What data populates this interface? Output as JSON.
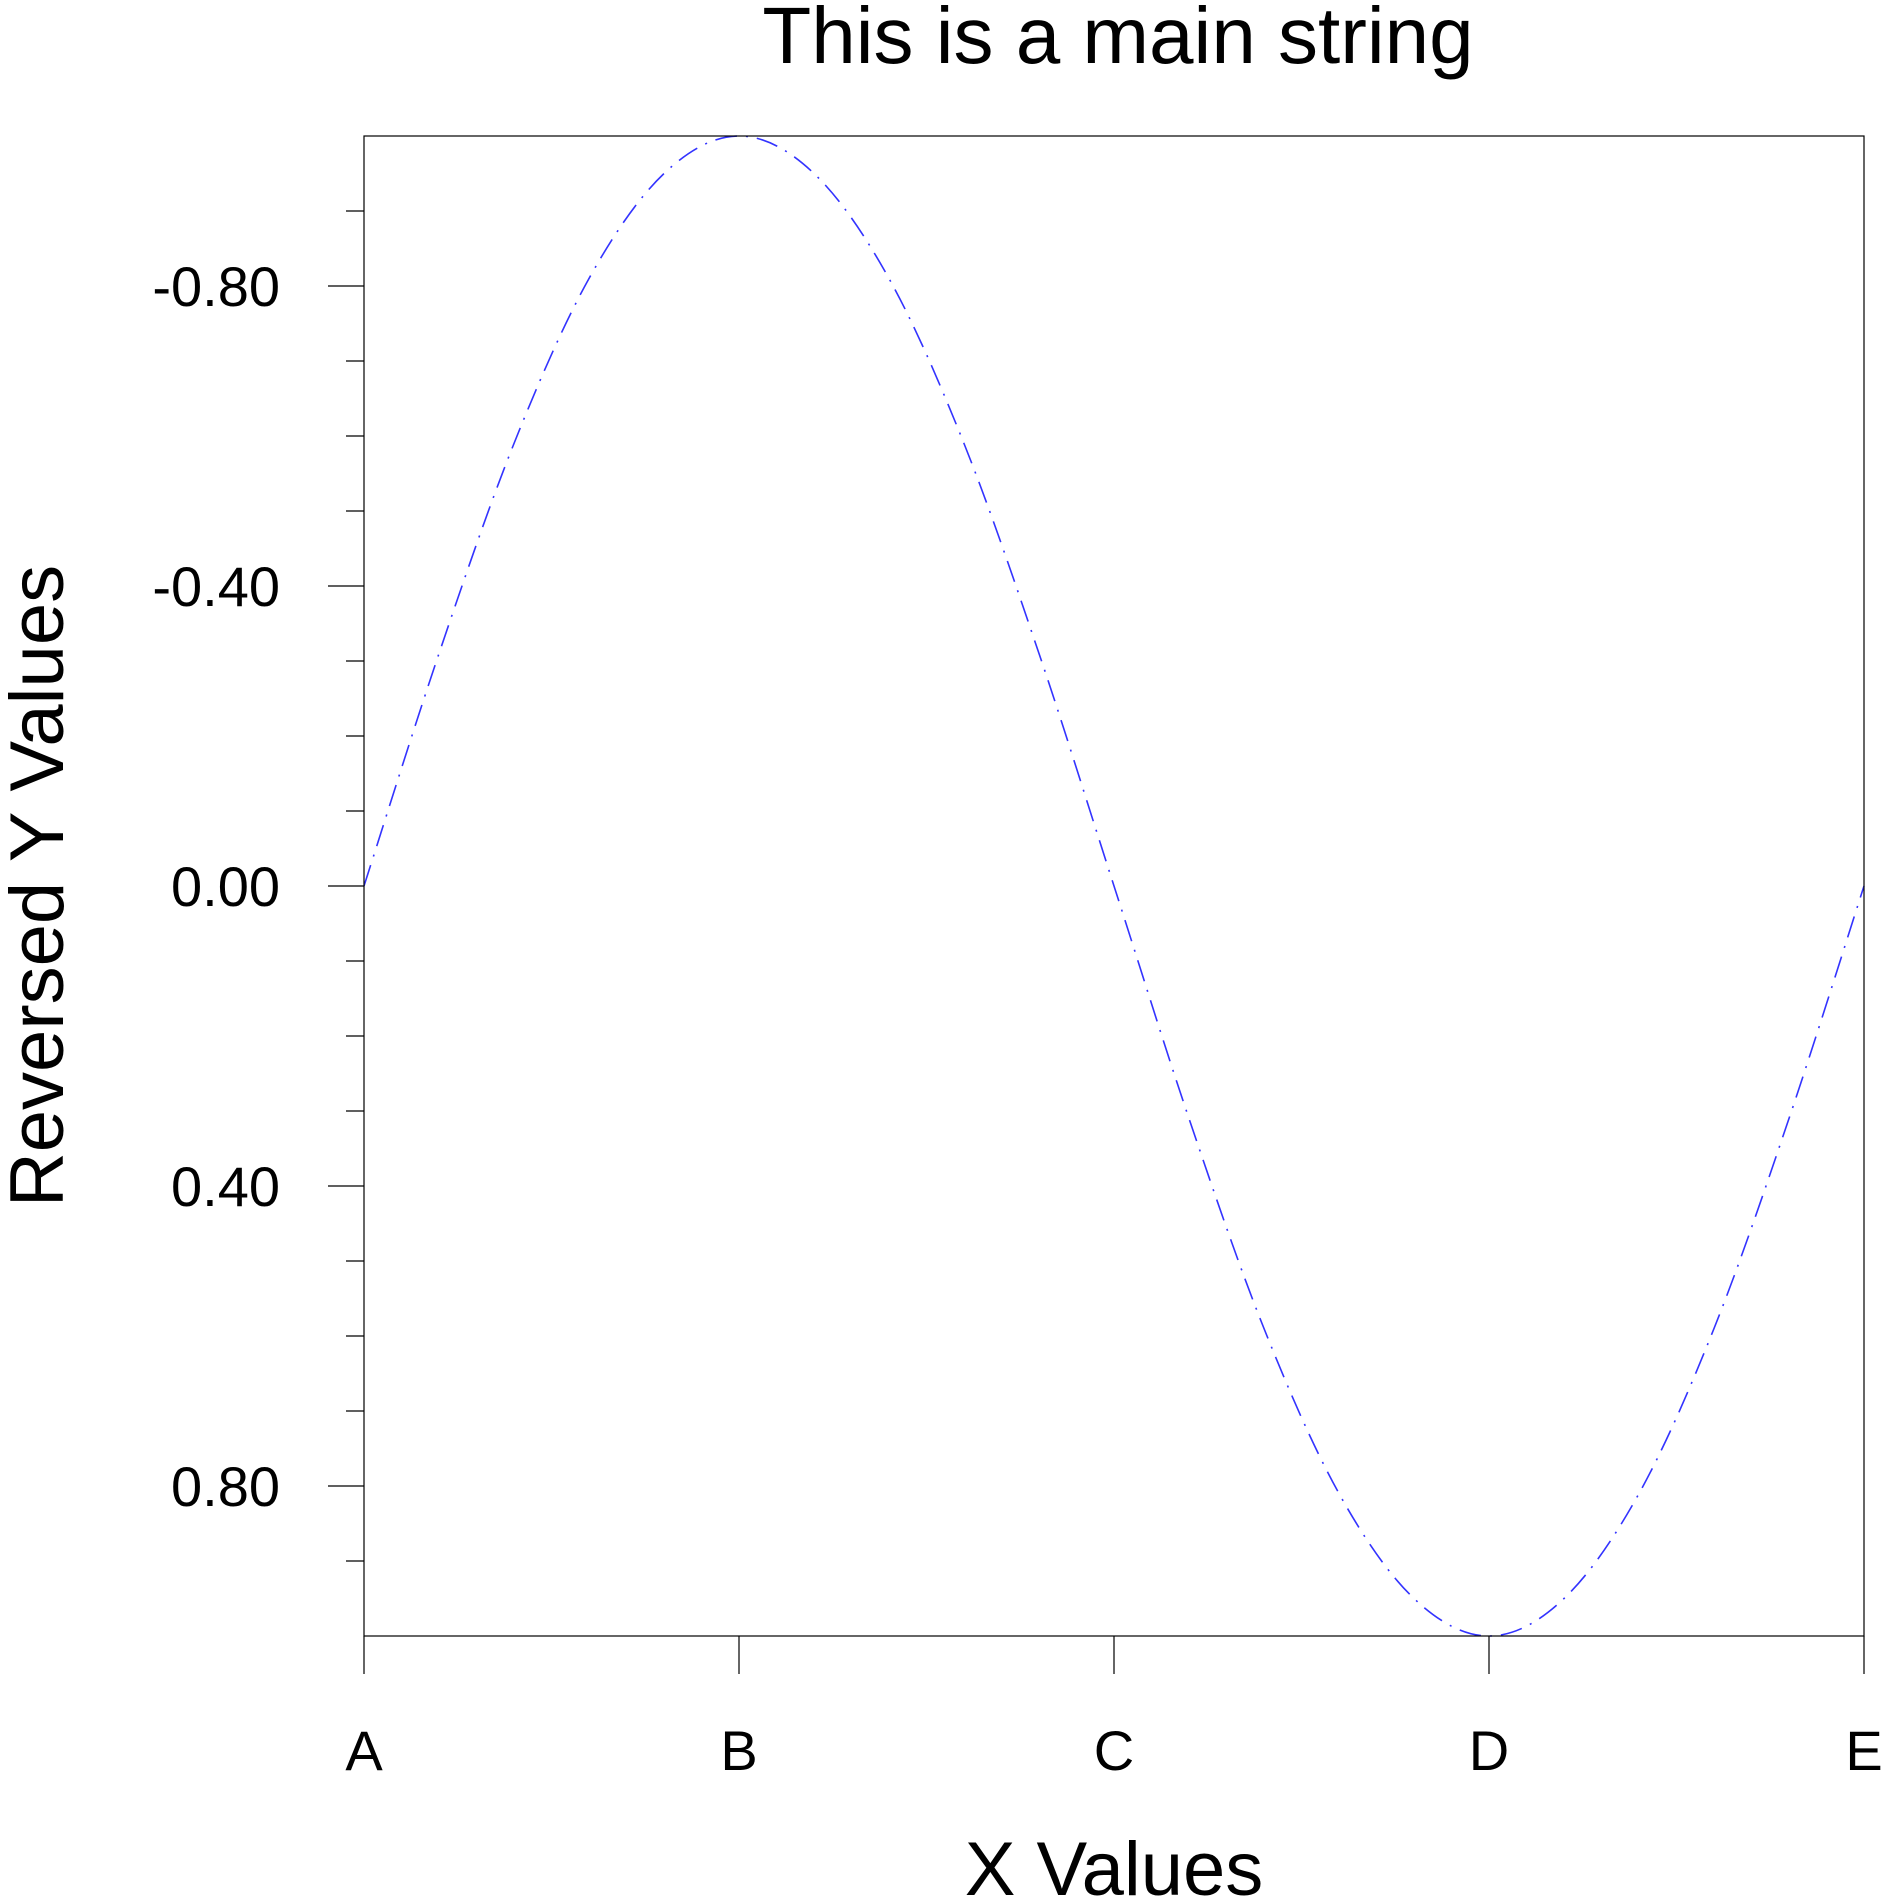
{
  "chart_data": {
    "type": "line",
    "title": "This is a main string",
    "xlabel": "X Values",
    "ylabel": "Reversed Y Values",
    "x_categories": [
      "A",
      "B",
      "C",
      "D",
      "E"
    ],
    "xlim": [
      0,
      4
    ],
    "ylim": [
      -1,
      1
    ],
    "y_reversed": true,
    "y_major_ticks": [
      -0.8,
      -0.4,
      0.0,
      0.4,
      0.8
    ],
    "y_tick_labels": [
      "-0.80",
      "-0.40",
      "0.00",
      "0.40",
      "0.80"
    ],
    "y_minor_step": 0.1,
    "grid": false,
    "series": [
      {
        "color": "#3333ff",
        "line_style": "dash-dot",
        "x": [
          0.0,
          0.2,
          0.4,
          0.6,
          0.8,
          1.0,
          1.2,
          1.4,
          1.6,
          1.8,
          2.0,
          2.2,
          2.4,
          2.6,
          2.8,
          3.0,
          3.2,
          3.4,
          3.6,
          3.8,
          4.0
        ],
        "y": [
          0.0,
          -0.31,
          -0.59,
          -0.81,
          -0.95,
          -1.0,
          -0.95,
          -0.81,
          -0.59,
          -0.31,
          0.0,
          0.31,
          0.59,
          0.81,
          0.95,
          1.0,
          0.95,
          0.81,
          0.59,
          0.31,
          0.0
        ]
      }
    ]
  }
}
